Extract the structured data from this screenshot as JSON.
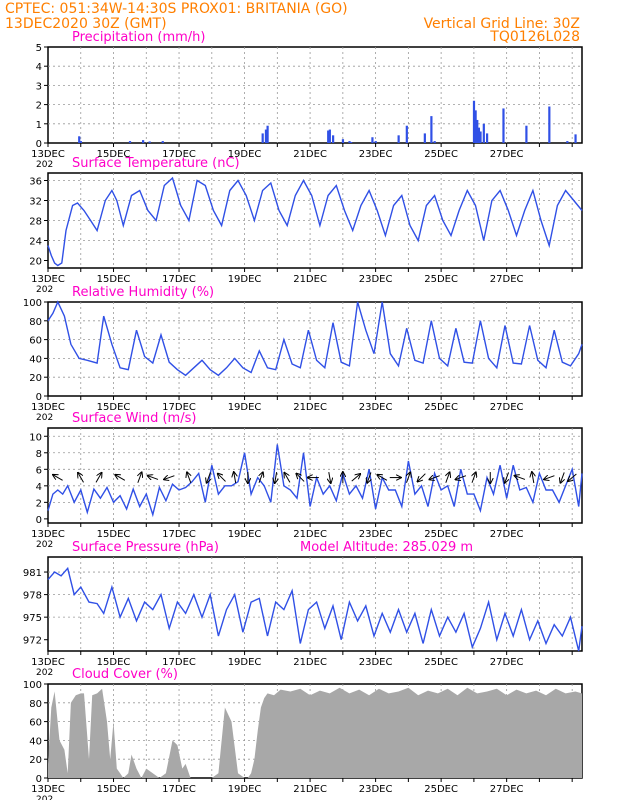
{
  "header": {
    "line1": "CPTEC:   051:34W-14:30S   PROX01: BRITANIA (GO)",
    "line2_left": "13DEC2020 30Z (GMT)",
    "line2_right": "Vertical Grid Line: 30Z",
    "run_code": "TQ0126L028"
  },
  "colors": {
    "header": "#ff7f00",
    "panel_title": "#ff00c8",
    "series": "#3050e6",
    "cloud_fill": "#a8a8a8",
    "axis": "#000000",
    "grid": "#999999"
  },
  "dates": [
    "13DEC",
    "15DEC",
    "17DEC",
    "19DEC",
    "21DEC",
    "23DEC",
    "25DEC",
    "27DEC"
  ],
  "year_fragment": "202",
  "model_altitude": "Model Altitude: 285.029 m",
  "chart_data": [
    {
      "id": "precip",
      "type": "bar",
      "title": "Precipitation (mm/h)",
      "ylim": [
        0,
        5
      ],
      "yticks": [
        "0",
        "1",
        "2",
        "3",
        "4",
        "5"
      ],
      "x": [
        0.95,
        1.0,
        2.5,
        2.9,
        3.1,
        3.5,
        6.55,
        6.65,
        6.7,
        8.55,
        8.6,
        8.7,
        9.0,
        9.2,
        9.25,
        9.9,
        10.0,
        10.7,
        10.95,
        11.5,
        11.7,
        11.8,
        13.0,
        13.05,
        13.1,
        13.15,
        13.2,
        13.3,
        13.4,
        13.9,
        14.6,
        15.3,
        15.85,
        16.1
      ],
      "values": [
        0.35,
        0.1,
        0.1,
        0.15,
        0.08,
        0.1,
        0.5,
        0.7,
        0.9,
        0.65,
        0.7,
        0.4,
        0.2,
        0.1,
        0.05,
        0.3,
        0.1,
        0.4,
        0.9,
        0.5,
        1.4,
        0.1,
        2.2,
        1.7,
        1.2,
        0.8,
        0.6,
        1.0,
        0.5,
        1.8,
        0.9,
        1.9,
        0.1,
        0.45
      ]
    },
    {
      "id": "temp",
      "type": "line",
      "title": "Surface Temperature (nC)",
      "ylim": [
        18.5,
        37.5
      ],
      "yticks": [
        "20",
        "24",
        "28",
        "32",
        "36"
      ],
      "ytick_values": [
        20,
        24,
        28,
        32,
        36
      ],
      "x": [
        0,
        0.1,
        0.2,
        0.3,
        0.42,
        0.55,
        0.75,
        0.9,
        1.1,
        1.3,
        1.5,
        1.75,
        1.95,
        2.1,
        2.3,
        2.55,
        2.8,
        3.05,
        3.3,
        3.55,
        3.8,
        4.05,
        4.3,
        4.55,
        4.8,
        5.05,
        5.3,
        5.55,
        5.8,
        6.05,
        6.3,
        6.55,
        6.8,
        7.05,
        7.3,
        7.55,
        7.8,
        8.05,
        8.3,
        8.55,
        8.8,
        9.05,
        9.3,
        9.55,
        9.8,
        10.05,
        10.3,
        10.55,
        10.8,
        11.05,
        11.3,
        11.55,
        11.8,
        12.05,
        12.3,
        12.55,
        12.8,
        13.05,
        13.3,
        13.55,
        13.8,
        14.05,
        14.3,
        14.55,
        14.8,
        15.05,
        15.3,
        15.55,
        15.8,
        16.05,
        16.3
      ],
      "values": [
        23,
        21,
        19.5,
        19,
        19.5,
        26,
        31,
        31.5,
        30,
        28,
        26,
        32,
        34,
        32,
        27,
        33,
        34,
        30,
        28,
        35,
        36.5,
        31,
        28,
        36,
        35,
        30,
        27,
        34,
        36,
        33,
        28,
        34,
        35.5,
        30,
        27,
        33,
        36,
        33,
        27,
        33,
        35,
        30,
        26,
        31,
        34,
        30,
        25,
        31,
        33,
        27,
        24,
        31,
        33,
        28,
        25,
        30,
        34,
        31,
        24,
        32,
        34,
        30,
        25,
        30,
        34,
        28,
        23,
        31,
        34,
        32,
        30
      ]
    },
    {
      "id": "rh",
      "type": "line",
      "title": "Relative Humidity (%)",
      "ylim": [
        0,
        100
      ],
      "yticks": [
        "0",
        "20",
        "40",
        "60",
        "80",
        "100"
      ],
      "x": [
        0,
        0.15,
        0.3,
        0.5,
        0.7,
        0.95,
        1.2,
        1.5,
        1.7,
        1.95,
        2.2,
        2.45,
        2.7,
        2.95,
        3.2,
        3.45,
        3.7,
        3.95,
        4.2,
        4.45,
        4.7,
        4.95,
        5.2,
        5.45,
        5.7,
        5.95,
        6.2,
        6.45,
        6.7,
        6.95,
        7.2,
        7.45,
        7.7,
        7.95,
        8.2,
        8.45,
        8.7,
        8.95,
        9.2,
        9.45,
        9.7,
        9.95,
        10.2,
        10.45,
        10.7,
        10.95,
        11.2,
        11.45,
        11.7,
        11.95,
        12.2,
        12.45,
        12.7,
        12.95,
        13.2,
        13.45,
        13.7,
        13.95,
        14.2,
        14.45,
        14.7,
        14.95,
        15.2,
        15.45,
        15.7,
        15.95,
        16.2,
        16.3
      ],
      "values": [
        80,
        88,
        100,
        85,
        55,
        40,
        38,
        35,
        85,
        55,
        30,
        28,
        70,
        42,
        35,
        65,
        36,
        28,
        22,
        30,
        38,
        28,
        22,
        30,
        40,
        30,
        25,
        48,
        30,
        28,
        60,
        34,
        30,
        70,
        38,
        30,
        78,
        36,
        32,
        100,
        70,
        45,
        100,
        45,
        32,
        72,
        38,
        35,
        80,
        40,
        32,
        72,
        36,
        35,
        80,
        40,
        30,
        75,
        35,
        34,
        75,
        38,
        30,
        70,
        36,
        32,
        45,
        55
      ]
    },
    {
      "id": "wind",
      "type": "line",
      "title": "Surface Wind (m/s)",
      "ylim": [
        -0.5,
        11
      ],
      "yticks": [
        "0",
        "2",
        "4",
        "6",
        "8",
        "10"
      ],
      "ytick_values": [
        0,
        2,
        4,
        6,
        8,
        10
      ],
      "x": [
        0,
        0.15,
        0.3,
        0.45,
        0.6,
        0.8,
        1.0,
        1.2,
        1.4,
        1.6,
        1.8,
        2.0,
        2.2,
        2.4,
        2.6,
        2.8,
        3.0,
        3.2,
        3.4,
        3.6,
        3.8,
        4.0,
        4.2,
        4.4,
        4.6,
        4.8,
        5.0,
        5.2,
        5.4,
        5.6,
        5.8,
        6.0,
        6.2,
        6.4,
        6.6,
        6.8,
        7.0,
        7.2,
        7.4,
        7.6,
        7.8,
        8.0,
        8.2,
        8.4,
        8.6,
        8.8,
        9.0,
        9.2,
        9.4,
        9.6,
        9.8,
        10.0,
        10.2,
        10.4,
        10.6,
        10.8,
        11.0,
        11.2,
        11.4,
        11.6,
        11.8,
        12.0,
        12.2,
        12.4,
        12.6,
        12.8,
        13.0,
        13.2,
        13.4,
        13.6,
        13.8,
        14.0,
        14.2,
        14.4,
        14.6,
        14.8,
        15.0,
        15.2,
        15.4,
        15.6,
        15.8,
        16.0,
        16.2,
        16.3
      ],
      "values": [
        1,
        3,
        3.5,
        3,
        4,
        2,
        3.5,
        0.8,
        3.6,
        2.5,
        3.8,
        2,
        2.8,
        1.2,
        3.6,
        1.5,
        3,
        0.5,
        3.8,
        2.2,
        4.2,
        3.5,
        3.8,
        4.5,
        5.5,
        2,
        6.5,
        3,
        4,
        4,
        4.5,
        8,
        3,
        5,
        4,
        2,
        9,
        4,
        3.5,
        2.5,
        8,
        1.5,
        5,
        3,
        4,
        2.2,
        5.5,
        3,
        4,
        2.5,
        6,
        1.2,
        5,
        3.5,
        3.5,
        1.5,
        7,
        3,
        4,
        1.5,
        5.5,
        3.5,
        4,
        1.5,
        6,
        3,
        3,
        1,
        5,
        3,
        6.5,
        2.5,
        6.5,
        3.5,
        3.8,
        2,
        5.5,
        3.5,
        3.5,
        2,
        4,
        6,
        1.5,
        5.5
      ]
    },
    {
      "id": "pressure",
      "type": "line",
      "title": "Surface Pressure (hPa)",
      "ylim": [
        970.5,
        983
      ],
      "yticks": [
        "972",
        "975",
        "978",
        "981"
      ],
      "ytick_values": [
        972,
        975,
        978,
        981
      ],
      "x": [
        0,
        0.2,
        0.4,
        0.6,
        0.8,
        1.0,
        1.25,
        1.5,
        1.7,
        1.95,
        2.2,
        2.45,
        2.7,
        2.95,
        3.2,
        3.45,
        3.7,
        3.95,
        4.2,
        4.45,
        4.7,
        4.95,
        5.2,
        5.45,
        5.7,
        5.95,
        6.2,
        6.45,
        6.7,
        6.95,
        7.2,
        7.45,
        7.7,
        7.95,
        8.2,
        8.45,
        8.7,
        8.95,
        9.2,
        9.45,
        9.7,
        9.95,
        10.2,
        10.45,
        10.7,
        10.95,
        11.2,
        11.45,
        11.7,
        11.95,
        12.2,
        12.45,
        12.7,
        12.95,
        13.2,
        13.45,
        13.7,
        13.95,
        14.2,
        14.45,
        14.7,
        14.95,
        15.2,
        15.45,
        15.7,
        15.95,
        16.2,
        16.3
      ],
      "values": [
        980,
        981,
        980.5,
        981.5,
        978,
        979,
        977,
        976.8,
        975.5,
        979,
        975,
        977.5,
        974.5,
        977,
        976,
        978,
        973.5,
        977,
        975.5,
        978,
        975,
        978,
        972.5,
        976,
        978,
        973,
        977,
        977.5,
        972.5,
        977,
        976,
        978.5,
        971.5,
        976,
        977,
        973.5,
        976.5,
        972,
        977,
        974.5,
        976.5,
        972.5,
        975.5,
        973,
        976,
        973,
        975.5,
        971.5,
        976,
        972.5,
        975,
        973,
        975.5,
        971,
        973.5,
        977,
        972,
        975.5,
        972.5,
        976,
        972,
        974.5,
        971.5,
        974,
        972.5,
        975,
        970.5,
        973.8
      ]
    },
    {
      "id": "cloud",
      "type": "area",
      "title": "Cloud Cover (%)",
      "ylim": [
        0,
        100
      ],
      "yticks": [
        "0",
        "20",
        "40",
        "60",
        "80",
        "100"
      ],
      "x": [
        0,
        0.1,
        0.2,
        0.35,
        0.5,
        0.6,
        0.7,
        0.85,
        1.0,
        1.1,
        1.25,
        1.35,
        1.5,
        1.65,
        1.8,
        1.9,
        2.0,
        2.1,
        2.2,
        2.3,
        2.45,
        2.55,
        2.7,
        2.85,
        3.0,
        3.2,
        3.4,
        3.6,
        3.8,
        3.95,
        4.1,
        4.2,
        4.35,
        4.5,
        4.65,
        4.8,
        5.0,
        5.2,
        5.4,
        5.6,
        5.8,
        6.0,
        6.1,
        6.2,
        6.3,
        6.4,
        6.5,
        6.6,
        6.7,
        6.9,
        7.1,
        7.4,
        7.7,
        8.0,
        8.3,
        8.6,
        8.9,
        9.2,
        9.5,
        9.8,
        10.1,
        10.4,
        10.7,
        11.0,
        11.3,
        11.6,
        11.9,
        12.2,
        12.5,
        12.8,
        13.1,
        13.4,
        13.7,
        14.0,
        14.3,
        14.6,
        14.9,
        15.2,
        15.5,
        15.8,
        16.1,
        16.3
      ],
      "values": [
        15,
        75,
        92,
        40,
        30,
        5,
        80,
        88,
        90,
        90,
        20,
        88,
        90,
        95,
        60,
        20,
        60,
        10,
        5,
        0,
        5,
        25,
        10,
        0,
        10,
        5,
        0,
        5,
        40,
        35,
        10,
        15,
        0,
        0,
        0,
        0,
        0,
        5,
        75,
        60,
        5,
        0,
        0,
        5,
        20,
        50,
        75,
        85,
        90,
        88,
        94,
        92,
        95,
        88,
        93,
        90,
        96,
        90,
        94,
        88,
        95,
        90,
        92,
        96,
        88,
        93,
        90,
        95,
        88,
        96,
        90,
        92,
        95,
        88,
        94,
        90,
        93,
        88,
        95,
        90,
        92,
        90
      ]
    }
  ],
  "wind_vectors": {
    "x": [
      0.3,
      1.0,
      1.55,
      2.2,
      2.8,
      3.2,
      3.7,
      4.3,
      4.9,
      5.3,
      5.7,
      6.1,
      6.5,
      6.95,
      7.3,
      7.7,
      8.1,
      8.6,
      9.0,
      9.4,
      9.8,
      10.2,
      10.6,
      11.0,
      11.4,
      11.8,
      12.2,
      12.6,
      13.0,
      13.5,
      14.0,
      14.4,
      14.8,
      15.3,
      15.7,
      16.0
    ],
    "angle_deg": [
      150,
      120,
      60,
      150,
      70,
      160,
      200,
      110,
      250,
      135,
      100,
      270,
      70,
      260,
      120,
      135,
      180,
      280,
      90,
      40,
      250,
      150,
      0,
      70,
      225,
      200,
      70,
      200,
      70,
      270,
      250,
      160,
      100,
      200,
      250,
      220
    ]
  }
}
